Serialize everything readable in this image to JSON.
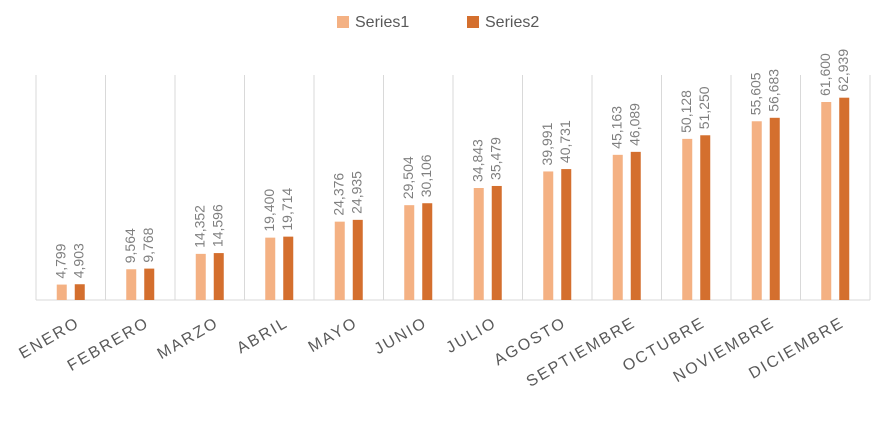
{
  "chart_data": {
    "type": "bar",
    "categories": [
      "ENERO",
      "FEBRERO",
      "MARZO",
      "ABRIL",
      "MAYO",
      "JUNIO",
      "JULIO",
      "AGOSTO",
      "SEPTIEMBRE",
      "OCTUBRE",
      "NOVIEMBRE",
      "DICIEMBRE"
    ],
    "series": [
      {
        "name": "Series1",
        "color": "#f4b183",
        "values": [
          4799,
          9564,
          14352,
          19400,
          24376,
          29504,
          34843,
          39991,
          45163,
          50128,
          55605,
          61600
        ],
        "value_labels": [
          "4,799",
          "9,564",
          "14,352",
          "19,400",
          "24,376",
          "29,504",
          "34,843",
          "39,991",
          "45,163",
          "50,128",
          "55,605",
          "61,600"
        ]
      },
      {
        "name": "Series2",
        "color": "#d46f2e",
        "values": [
          4903,
          9768,
          14596,
          19714,
          24935,
          30106,
          35479,
          40731,
          46089,
          51250,
          56683,
          62939
        ],
        "value_labels": [
          "4,903",
          "9,768",
          "14,596",
          "19,714",
          "24,935",
          "30,106",
          "35,479",
          "40,731",
          "46,089",
          "51,250",
          "56,683",
          "62,939"
        ]
      }
    ],
    "ylim": [
      0,
      70000
    ],
    "legend": "top"
  }
}
